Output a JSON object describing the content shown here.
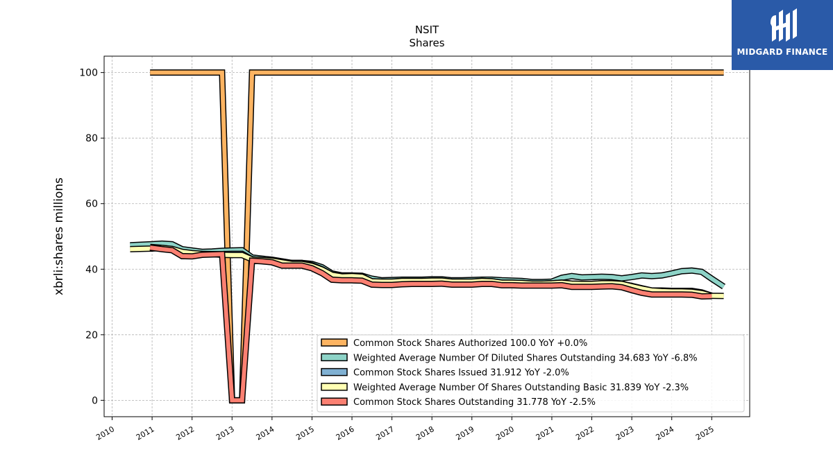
{
  "brand": {
    "name": "MIDGARD FINANCE",
    "icon": "midgard-logo-icon",
    "bg": "#2a5aa8"
  },
  "chart_data": {
    "type": "line",
    "title": "NSIT",
    "subtitle": "Shares",
    "ylabel": "xbrli:shares millions",
    "xlabel": "",
    "ylim": [
      -5,
      105
    ],
    "xlim": [
      2009.8,
      2025.95
    ],
    "grid": true,
    "legend_position": "lower-right",
    "yticks": [
      0,
      20,
      40,
      60,
      80,
      100
    ],
    "xticks": [
      "2010",
      "2011",
      "2012",
      "2013",
      "2014",
      "2015",
      "2016",
      "2017",
      "2018",
      "2019",
      "2020",
      "2021",
      "2022",
      "2023",
      "2024",
      "2025"
    ],
    "series": [
      {
        "name": "Common Stock Shares Authorized",
        "legend": "Common Stock Shares Authorized  100.0 YoY +0.0%",
        "color": "#fdb462",
        "x": [
          2010.95,
          2012.75,
          2013.0,
          2013.25,
          2013.5,
          2025.3
        ],
        "y": [
          100,
          100,
          0,
          0,
          100,
          100
        ]
      },
      {
        "name": "Weighted Average Number Of Diluted Shares Outstanding",
        "legend": "Weighted Average Number Of Diluted Shares Outstanding  34.683 YoY -6.8%",
        "color": "#8dd3c7",
        "x": [
          2010.45,
          2011.0,
          2011.25,
          2011.5,
          2011.75,
          2012.0,
          2012.25,
          2012.5,
          2012.75,
          2013.0,
          2013.25,
          2013.5,
          2013.75,
          2014.0,
          2014.25,
          2014.5,
          2014.75,
          2015.0,
          2015.25,
          2015.5,
          2015.75,
          2016.0,
          2016.25,
          2016.5,
          2016.75,
          2017.0,
          2017.25,
          2017.5,
          2017.75,
          2018.0,
          2018.25,
          2018.5,
          2018.75,
          2019.0,
          2019.25,
          2019.5,
          2019.75,
          2020.0,
          2020.25,
          2020.5,
          2020.75,
          2021.0,
          2021.25,
          2021.5,
          2021.75,
          2022.0,
          2022.25,
          2022.5,
          2022.75,
          2023.0,
          2023.25,
          2023.5,
          2023.75,
          2024.0,
          2024.25,
          2024.5,
          2024.75,
          2025.0,
          2025.3
        ],
        "y": [
          47.3,
          47.6,
          47.8,
          47.6,
          46.1,
          45.7,
          45.3,
          45.4,
          45.6,
          45.7,
          45.8,
          43.6,
          43.2,
          42.9,
          42.4,
          41.9,
          41.9,
          41.6,
          40.6,
          38.7,
          38.1,
          38.1,
          38.0,
          37.1,
          36.6,
          36.7,
          36.8,
          36.8,
          36.8,
          36.9,
          36.9,
          36.6,
          36.6,
          36.7,
          36.8,
          36.8,
          36.6,
          36.5,
          36.4,
          36.1,
          36.1,
          36.2,
          37.4,
          37.9,
          37.5,
          37.6,
          37.7,
          37.6,
          37.2,
          37.6,
          38.1,
          37.9,
          38.1,
          38.7,
          39.4,
          39.6,
          39.2,
          37.1,
          34.683
        ]
      },
      {
        "name": "Common Stock Shares Issued",
        "legend": "Common Stock Shares Issued  31.912 YoY -2.0%",
        "color": "#80b1d3",
        "x": [
          2010.95,
          2011.25,
          2011.5,
          2011.75,
          2012.0,
          2012.25,
          2012.5,
          2012.75,
          2013.0,
          2013.25,
          2013.5,
          2013.75,
          2014.0,
          2014.25,
          2014.5,
          2014.75,
          2015.0,
          2015.25,
          2015.5,
          2015.75,
          2016.0,
          2016.25,
          2016.5,
          2016.75,
          2017.0,
          2017.25,
          2017.5,
          2017.75,
          2018.0,
          2018.25,
          2018.5,
          2018.75,
          2019.0,
          2019.25,
          2019.5,
          2019.75,
          2020.0,
          2020.25,
          2020.5,
          2020.75,
          2021.0,
          2021.25,
          2021.5,
          2021.75,
          2022.0,
          2022.25,
          2022.5,
          2022.75,
          2023.0,
          2023.25,
          2023.5,
          2023.75,
          2024.0,
          2024.25,
          2024.5,
          2024.75,
          2025.0
        ],
        "y": [
          46.8,
          46.5,
          46.1,
          44.0,
          44.0,
          44.5,
          44.6,
          44.6,
          44.7,
          44.7,
          43.0,
          42.8,
          42.6,
          42.0,
          41.9,
          41.9,
          41.2,
          40.0,
          38.3,
          37.8,
          37.9,
          37.8,
          36.3,
          36.2,
          36.2,
          36.4,
          36.4,
          36.4,
          36.5,
          36.5,
          36.2,
          36.2,
          36.2,
          36.4,
          36.3,
          35.9,
          35.9,
          35.8,
          35.6,
          35.6,
          35.7,
          35.9,
          35.6,
          35.5,
          35.5,
          35.7,
          35.7,
          35.5,
          34.9,
          34.2,
          33.5,
          33.5,
          33.4,
          33.4,
          33.4,
          32.9,
          31.912
        ]
      },
      {
        "name": "Weighted Average Number Of Shares Outstanding Basic",
        "legend": "Weighted Average Number Of Shares Outstanding Basic  31.839 YoY -2.3%",
        "color": "#ffffb3",
        "x": [
          2010.45,
          2011.0,
          2011.25,
          2011.5,
          2011.75,
          2012.0,
          2012.25,
          2012.5,
          2012.75,
          2013.0,
          2013.25,
          2013.5,
          2013.75,
          2014.0,
          2014.25,
          2014.5,
          2014.75,
          2015.0,
          2015.25,
          2015.5,
          2015.75,
          2016.0,
          2016.25,
          2016.5,
          2016.75,
          2017.0,
          2017.25,
          2017.5,
          2017.75,
          2018.0,
          2018.25,
          2018.5,
          2018.75,
          2019.0,
          2019.25,
          2019.5,
          2019.75,
          2020.0,
          2020.25,
          2020.5,
          2020.75,
          2021.0,
          2021.25,
          2021.5,
          2021.75,
          2022.0,
          2022.25,
          2022.5,
          2022.75,
          2023.0,
          2023.25,
          2023.5,
          2023.75,
          2024.0,
          2024.25,
          2024.5,
          2024.75,
          2025.0,
          2025.3
        ],
        "y": [
          46.1,
          46.3,
          46.5,
          46.2,
          45.3,
          44.9,
          44.7,
          44.6,
          44.4,
          44.3,
          44.3,
          43.0,
          42.8,
          42.6,
          42.1,
          41.6,
          41.6,
          41.0,
          39.9,
          38.3,
          37.8,
          37.9,
          37.7,
          36.3,
          36.2,
          36.2,
          36.4,
          36.4,
          36.4,
          36.5,
          36.5,
          36.2,
          36.2,
          36.2,
          36.4,
          36.3,
          35.9,
          35.9,
          35.8,
          35.6,
          35.6,
          35.7,
          35.9,
          35.6,
          35.5,
          35.5,
          35.7,
          35.7,
          35.5,
          34.8,
          34.1,
          33.5,
          33.3,
          33.2,
          33.2,
          33.1,
          32.7,
          31.9,
          31.839
        ]
      },
      {
        "name": "Common Stock Shares Outstanding",
        "legend": "Common Stock Shares Outstanding  31.778 YoY -2.5%",
        "color": "#fb8072",
        "x": [
          2010.95,
          2011.25,
          2011.5,
          2011.75,
          2012.0,
          2012.25,
          2012.5,
          2012.75,
          2013.0,
          2013.25,
          2013.5,
          2013.75,
          2014.0,
          2014.25,
          2014.5,
          2014.75,
          2015.0,
          2015.25,
          2015.5,
          2015.75,
          2016.0,
          2016.25,
          2016.5,
          2016.75,
          2017.0,
          2017.25,
          2017.5,
          2017.75,
          2018.0,
          2018.25,
          2018.5,
          2018.75,
          2019.0,
          2019.25,
          2019.5,
          2019.75,
          2020.0,
          2020.25,
          2020.5,
          2020.75,
          2021.0,
          2021.25,
          2021.5,
          2021.75,
          2022.0,
          2022.25,
          2022.5,
          2022.75,
          2023.0,
          2023.25,
          2023.5,
          2023.75,
          2024.0,
          2024.25,
          2024.5,
          2024.75,
          2025.0
        ],
        "y": [
          46.6,
          46.1,
          45.8,
          44.0,
          43.9,
          44.4,
          44.5,
          44.6,
          0,
          0,
          42.6,
          42.4,
          42.1,
          41.1,
          41.1,
          41.1,
          40.3,
          38.8,
          36.8,
          36.6,
          36.6,
          36.5,
          35.3,
          35.2,
          35.2,
          35.4,
          35.5,
          35.5,
          35.5,
          35.6,
          35.3,
          35.3,
          35.3,
          35.5,
          35.5,
          35.1,
          35.1,
          35.0,
          35.0,
          35.0,
          35.0,
          35.1,
          34.6,
          34.6,
          34.6,
          34.7,
          34.8,
          34.5,
          33.6,
          32.8,
          32.3,
          32.3,
          32.3,
          32.3,
          32.2,
          31.7,
          31.778
        ]
      }
    ],
    "draw_order": [
      0,
      1,
      2,
      3,
      4
    ]
  }
}
